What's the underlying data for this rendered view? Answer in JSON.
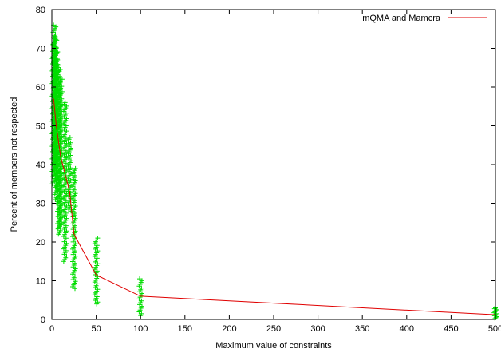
{
  "chart_data": {
    "type": "scatter",
    "xlabel": "Maximum value of constraints",
    "ylabel": "Percent of members not respected",
    "xlim": [
      0,
      500
    ],
    "ylim": [
      0,
      80
    ],
    "x_ticks": [
      0,
      50,
      100,
      150,
      200,
      250,
      300,
      350,
      400,
      450,
      500
    ],
    "y_ticks": [
      0,
      10,
      20,
      30,
      40,
      50,
      60,
      70,
      80
    ],
    "legend": {
      "position": "top-right"
    },
    "series": [
      {
        "name": "mQMA and Mamcra",
        "kind": "line",
        "color": "#e00000",
        "x": [
          2,
          5,
          10,
          20,
          25,
          50,
          100,
          500
        ],
        "y": [
          57,
          50,
          42,
          33,
          22,
          11.5,
          6,
          1.2
        ]
      },
      {
        "kind": "scatter",
        "marker": "+",
        "color": "#00dd00",
        "clusters": [
          {
            "x": 2,
            "y_min": 35,
            "y_max": 72
          },
          {
            "x": 3,
            "y_min": 40,
            "y_max": 76
          },
          {
            "x": 4,
            "y_min": 38,
            "y_max": 73
          },
          {
            "x": 5,
            "y_min": 30,
            "y_max": 70
          },
          {
            "x": 6,
            "y_min": 33,
            "y_max": 67
          },
          {
            "x": 8,
            "y_min": 22,
            "y_max": 65
          },
          {
            "x": 10,
            "y_min": 24,
            "y_max": 62
          },
          {
            "x": 15,
            "y_min": 15,
            "y_max": 56
          },
          {
            "x": 20,
            "y_min": 28,
            "y_max": 47
          },
          {
            "x": 25,
            "y_min": 8,
            "y_max": 39
          },
          {
            "x": 50,
            "y_min": 4,
            "y_max": 21
          },
          {
            "x": 100,
            "y_min": 1,
            "y_max": 10.5
          },
          {
            "x": 500,
            "y_min": 0.2,
            "y_max": 3
          }
        ]
      }
    ]
  }
}
